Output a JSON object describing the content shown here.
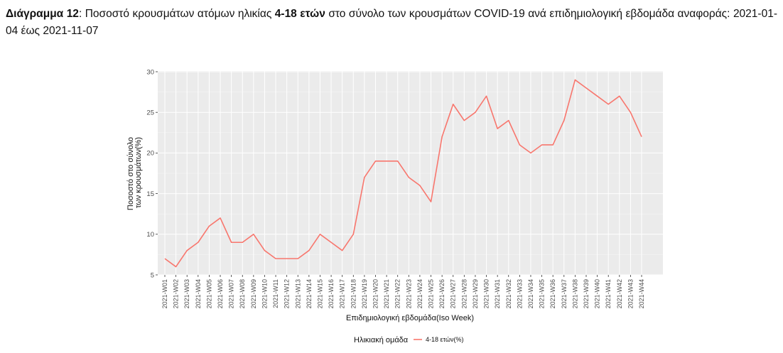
{
  "caption": {
    "label": "Διάγραμμα 12",
    "colon": ":",
    "text1": " Ποσοστό κρουσμάτων ατόμων ηλικίας ",
    "bold": "4-18 ετών",
    "text2": " στο σύνολο των κρουσμάτων COVID-19 ανά επιδημιολογική εβδομάδα αναφοράς: 2021-01-04 έως 2021-11-07"
  },
  "chart_data": {
    "type": "line",
    "xlabel": "Επιδημιολογική εβδομάδα(Iso Week)",
    "ylabel_lines": [
      "Ποσοστό στο σύνολο",
      "των κρουσμάτων(%)"
    ],
    "ylim": [
      5,
      30
    ],
    "yticks": [
      5,
      10,
      15,
      20,
      25,
      30
    ],
    "grid": true,
    "legend_title": "Ηλικιακή ομάδα",
    "legend_position": "bottom",
    "categories": [
      "2021-W01",
      "2021-W02",
      "2021-W03",
      "2021-W04",
      "2021-W05",
      "2021-W06",
      "2021-W07",
      "2021-W08",
      "2021-W09",
      "2021-W10",
      "2021-W11",
      "2021-W12",
      "2021-W13",
      "2021-W14",
      "2021-W15",
      "2021-W16",
      "2021-W17",
      "2021-W18",
      "2021-W19",
      "2021-W20",
      "2021-W21",
      "2021-W22",
      "2021-W23",
      "2021-W24",
      "2021-W25",
      "2021-W26",
      "2021-W27",
      "2021-W28",
      "2021-W29",
      "2021-W30",
      "2021-W31",
      "2021-W32",
      "2021-W33",
      "2021-W34",
      "2021-W35",
      "2021-W36",
      "2021-W37",
      "2021-W38",
      "2021-W39",
      "2021-W40",
      "2021-W41",
      "2021-W42",
      "2021-W43",
      "2021-W44"
    ],
    "series": [
      {
        "name": "4-18 ετών(%)",
        "color": "#F8766D",
        "values": [
          7,
          6,
          8,
          9,
          11,
          12,
          9,
          9,
          10,
          8,
          7,
          7,
          7,
          8,
          10,
          9,
          8,
          10,
          17,
          19,
          19,
          19,
          17,
          16,
          14,
          22,
          26,
          24,
          25,
          27,
          23,
          24,
          21,
          20,
          21,
          21,
          24,
          29,
          28,
          27,
          26,
          27,
          25,
          22
        ]
      }
    ]
  }
}
